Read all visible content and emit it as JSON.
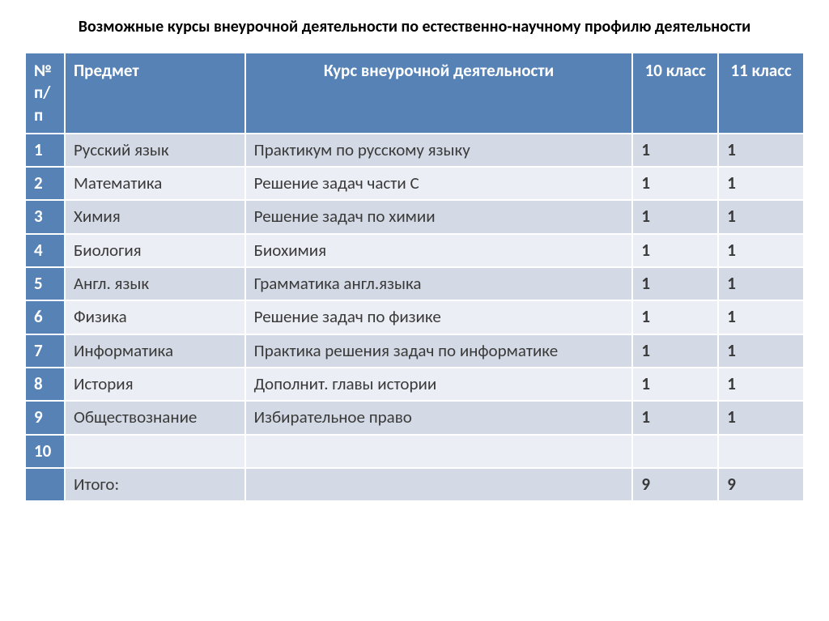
{
  "title": "Возможные  курсы внеурочной  деятельности по естественно-научному профилю деятельности",
  "table": {
    "headers": {
      "num": "№ п/п",
      "subject": "Предмет",
      "course": "Курс внеурочной деятельности",
      "class10": "10 класс",
      "class11": "11 класс"
    },
    "rows": [
      {
        "num": "1",
        "subject": "Русский язык",
        "course": "Практикум по русскому языку",
        "c10": "1",
        "c11": "1"
      },
      {
        "num": "2",
        "subject": "Математика",
        "course": "Решение задач части С",
        "c10": "1",
        "c11": "1"
      },
      {
        "num": "3",
        "subject": "Химия",
        "course": "Решение задач по химии",
        "c10": "1",
        "c11": "1"
      },
      {
        "num": "4",
        "subject": "Биология",
        "course": "Биохимия",
        "c10": "1",
        "c11": "1"
      },
      {
        "num": "5",
        "subject": "Англ. язык",
        "course": "Грамматика англ.языка",
        "c10": "1",
        "c11": "1"
      },
      {
        "num": "6",
        "subject": "Физика",
        "course": "Решение задач по физике",
        "c10": "1",
        "c11": "1"
      },
      {
        "num": "7",
        "subject": "Информатика",
        "course": "Практика решения задач по информатике",
        "c10": "1",
        "c11": "1"
      },
      {
        "num": "8",
        "subject": "История",
        "course": "Дополнит. главы истории",
        "c10": "1",
        "c11": "1"
      },
      {
        "num": "9",
        "subject": "Обществознание",
        "course": "Избирательное право",
        "c10": "1",
        "c11": "1"
      },
      {
        "num": "10",
        "subject": "",
        "course": "",
        "c10": "",
        "c11": ""
      }
    ],
    "total": {
      "label": "Итого:",
      "c10": "9",
      "c11": "9"
    }
  },
  "colors": {
    "header_bg": "#5682b5",
    "header_fg": "#ffffff",
    "row_odd_bg": "#d3dae5",
    "row_even_bg": "#ebeef4",
    "text_color": "#3a3a3a",
    "border_color": "#ffffff"
  },
  "typography": {
    "title_fontsize": 20,
    "table_fontsize": 21,
    "font_family": "Calibri"
  }
}
